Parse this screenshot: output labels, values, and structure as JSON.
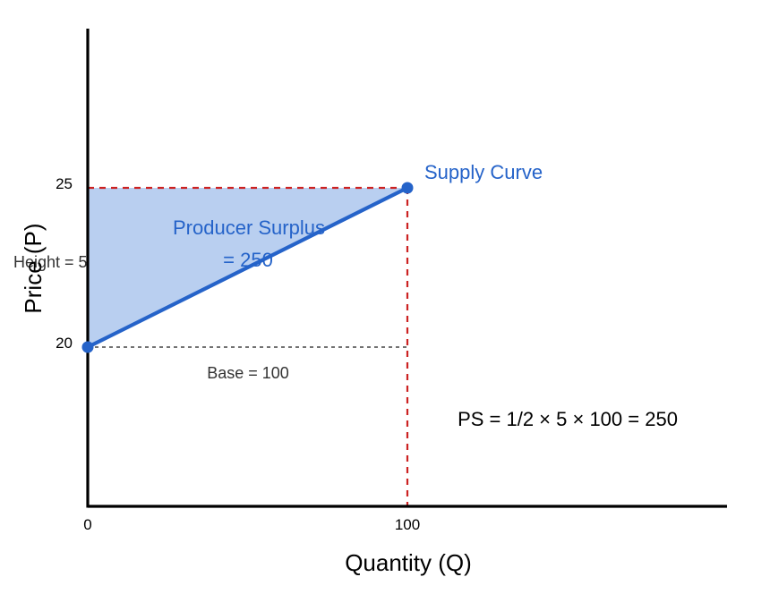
{
  "chart_data": {
    "type": "line",
    "title": "",
    "xlabel": "Quantity (Q)",
    "ylabel": "Price (P)",
    "xlim": [
      0,
      200
    ],
    "ylim": [
      15,
      30
    ],
    "grid": false,
    "x_ticks": [
      {
        "value": 0,
        "label": "0"
      },
      {
        "value": 100,
        "label": "100"
      }
    ],
    "y_ticks": [
      {
        "value": 20,
        "label": "20"
      },
      {
        "value": 25,
        "label": "25"
      }
    ],
    "series": [
      {
        "name": "Supply Curve",
        "points": [
          {
            "x": 0,
            "y": 20
          },
          {
            "x": 100,
            "y": 25
          }
        ],
        "color": "#2563c9"
      }
    ],
    "shaded_region": {
      "points": [
        {
          "x": 0,
          "y": 20
        },
        {
          "x": 100,
          "y": 25
        },
        {
          "x": 0,
          "y": 25
        }
      ],
      "color": "#b9cff0"
    },
    "reference_lines": {
      "price_line": {
        "y": 25,
        "x_from": 0,
        "x_to": 100,
        "color": "#cc2222"
      },
      "quantity_line": {
        "x": 100,
        "y_from": 15,
        "y_to": 25,
        "color": "#cc2222"
      },
      "base_line": {
        "y": 20,
        "x_from": 0,
        "x_to": 100,
        "color": "#444444"
      }
    },
    "annotations": {
      "supply_label": "Supply Curve",
      "surplus_line1": "Producer Surplus",
      "surplus_line2": "= 250",
      "height_label": "Height = 5",
      "base_label": "Base = 100",
      "formula": "PS = 1/2 × 5 × 100 = 250"
    },
    "colors": {
      "curve": "#2563c9",
      "fill": "#b9cff0",
      "dashed_red": "#cc2222",
      "dashed_gray": "#444444"
    }
  }
}
